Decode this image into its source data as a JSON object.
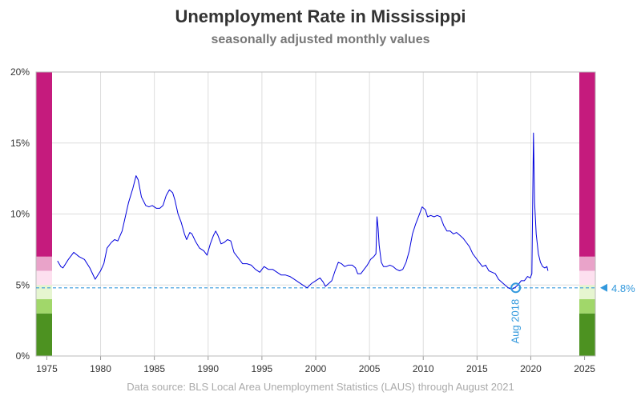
{
  "header": {
    "title": "Unemployment Rate in Mississippi",
    "subtitle": "seasonally adjusted monthly values"
  },
  "footer": {
    "source": "Data source: BLS Local Area Unemployment Statistics (LAUS) through August 2021"
  },
  "colors": {
    "line": "#0000dd",
    "reference": "#3399dd",
    "grid": "#dddddd",
    "band_very_high": "#c51b7d",
    "band_high": "#e9a3c9",
    "band_elevated": "#fde0ef",
    "band_normal": "#e6f5d0",
    "band_low": "#a1d76a",
    "band_very_low": "#4d9221"
  },
  "chart_data": {
    "type": "line",
    "title": "Unemployment Rate in Mississippi",
    "subtitle": "seasonally adjusted monthly values",
    "xlim": [
      1974,
      2026
    ],
    "ylim": [
      0,
      20
    ],
    "x_ticks": [
      1975,
      1980,
      1985,
      1990,
      1995,
      2000,
      2005,
      2010,
      2015,
      2020,
      2025
    ],
    "y_ticks": [
      {
        "value": 0,
        "label": "0%"
      },
      {
        "value": 5,
        "label": "5%"
      },
      {
        "value": 10,
        "label": "10%"
      },
      {
        "value": 15,
        "label": "15%"
      },
      {
        "value": 20,
        "label": "20%"
      }
    ],
    "grid": true,
    "color_bands": [
      {
        "from": 0,
        "to": 3,
        "color": "#4d9221"
      },
      {
        "from": 3,
        "to": 4,
        "color": "#a1d76a"
      },
      {
        "from": 4,
        "to": 5,
        "color": "#e6f5d0"
      },
      {
        "from": 5,
        "to": 6,
        "color": "#fde0ef"
      },
      {
        "from": 6,
        "to": 7,
        "color": "#e9a3c9"
      },
      {
        "from": 7,
        "to": 20,
        "color": "#c51b7d"
      }
    ],
    "reference": {
      "value": 4.8,
      "label": "4.8%",
      "marker_x": 2018.6,
      "marker_label": "Aug 2018"
    },
    "series": [
      {
        "values": [
          [
            1976.0,
            6.7
          ],
          [
            1976.3,
            6.3
          ],
          [
            1976.5,
            6.2
          ],
          [
            1977.0,
            6.8
          ],
          [
            1977.5,
            7.3
          ],
          [
            1978.0,
            7.0
          ],
          [
            1978.5,
            6.8
          ],
          [
            1979.0,
            6.2
          ],
          [
            1979.5,
            5.4
          ],
          [
            1980.0,
            6.0
          ],
          [
            1980.3,
            6.5
          ],
          [
            1980.6,
            7.6
          ],
          [
            1981.0,
            8.0
          ],
          [
            1981.3,
            8.2
          ],
          [
            1981.6,
            8.1
          ],
          [
            1982.0,
            8.8
          ],
          [
            1982.3,
            9.8
          ],
          [
            1982.6,
            10.8
          ],
          [
            1983.0,
            11.8
          ],
          [
            1983.3,
            12.7
          ],
          [
            1983.5,
            12.4
          ],
          [
            1983.8,
            11.2
          ],
          [
            1984.2,
            10.6
          ],
          [
            1984.5,
            10.5
          ],
          [
            1984.8,
            10.6
          ],
          [
            1985.2,
            10.4
          ],
          [
            1985.5,
            10.4
          ],
          [
            1985.8,
            10.6
          ],
          [
            1986.1,
            11.3
          ],
          [
            1986.4,
            11.7
          ],
          [
            1986.7,
            11.5
          ],
          [
            1986.9,
            11.0
          ],
          [
            1987.2,
            10.0
          ],
          [
            1987.5,
            9.4
          ],
          [
            1987.8,
            8.6
          ],
          [
            1988.0,
            8.2
          ],
          [
            1988.3,
            8.7
          ],
          [
            1988.5,
            8.6
          ],
          [
            1988.8,
            8.1
          ],
          [
            1989.2,
            7.6
          ],
          [
            1989.6,
            7.4
          ],
          [
            1989.9,
            7.1
          ],
          [
            1990.2,
            7.9
          ],
          [
            1990.5,
            8.5
          ],
          [
            1990.7,
            8.8
          ],
          [
            1990.9,
            8.5
          ],
          [
            1991.2,
            7.9
          ],
          [
            1991.5,
            8.0
          ],
          [
            1991.8,
            8.2
          ],
          [
            1992.1,
            8.1
          ],
          [
            1992.4,
            7.3
          ],
          [
            1992.8,
            6.9
          ],
          [
            1993.2,
            6.5
          ],
          [
            1993.6,
            6.5
          ],
          [
            1994.0,
            6.4
          ],
          [
            1994.4,
            6.1
          ],
          [
            1994.8,
            5.9
          ],
          [
            1995.2,
            6.3
          ],
          [
            1995.6,
            6.1
          ],
          [
            1996.0,
            6.1
          ],
          [
            1996.4,
            5.9
          ],
          [
            1996.8,
            5.7
          ],
          [
            1997.2,
            5.7
          ],
          [
            1997.6,
            5.6
          ],
          [
            1998.0,
            5.4
          ],
          [
            1998.4,
            5.2
          ],
          [
            1998.8,
            5.0
          ],
          [
            1999.2,
            4.8
          ],
          [
            1999.6,
            5.1
          ],
          [
            2000.0,
            5.3
          ],
          [
            2000.4,
            5.5
          ],
          [
            2000.7,
            5.2
          ],
          [
            2000.9,
            4.9
          ],
          [
            2001.2,
            5.1
          ],
          [
            2001.5,
            5.3
          ],
          [
            2001.8,
            6.0
          ],
          [
            2002.1,
            6.6
          ],
          [
            2002.4,
            6.5
          ],
          [
            2002.7,
            6.3
          ],
          [
            2003.0,
            6.4
          ],
          [
            2003.4,
            6.4
          ],
          [
            2003.7,
            6.2
          ],
          [
            2003.9,
            5.8
          ],
          [
            2004.2,
            5.8
          ],
          [
            2004.5,
            6.1
          ],
          [
            2004.8,
            6.4
          ],
          [
            2005.1,
            6.8
          ],
          [
            2005.4,
            7.0
          ],
          [
            2005.6,
            7.2
          ],
          [
            2005.7,
            9.8
          ],
          [
            2005.8,
            9.0
          ],
          [
            2005.9,
            7.8
          ],
          [
            2006.1,
            6.6
          ],
          [
            2006.3,
            6.3
          ],
          [
            2006.6,
            6.3
          ],
          [
            2006.9,
            6.4
          ],
          [
            2007.2,
            6.3
          ],
          [
            2007.5,
            6.1
          ],
          [
            2007.8,
            6.0
          ],
          [
            2008.1,
            6.1
          ],
          [
            2008.4,
            6.6
          ],
          [
            2008.7,
            7.4
          ],
          [
            2009.0,
            8.6
          ],
          [
            2009.3,
            9.3
          ],
          [
            2009.6,
            9.9
          ],
          [
            2009.9,
            10.5
          ],
          [
            2010.2,
            10.3
          ],
          [
            2010.4,
            9.8
          ],
          [
            2010.7,
            9.9
          ],
          [
            2011.0,
            9.8
          ],
          [
            2011.3,
            9.9
          ],
          [
            2011.6,
            9.8
          ],
          [
            2011.9,
            9.2
          ],
          [
            2012.2,
            8.8
          ],
          [
            2012.5,
            8.8
          ],
          [
            2012.8,
            8.6
          ],
          [
            2013.1,
            8.7
          ],
          [
            2013.4,
            8.5
          ],
          [
            2013.7,
            8.3
          ],
          [
            2014.0,
            8.0
          ],
          [
            2014.3,
            7.7
          ],
          [
            2014.6,
            7.2
          ],
          [
            2014.9,
            6.9
          ],
          [
            2015.2,
            6.6
          ],
          [
            2015.5,
            6.3
          ],
          [
            2015.8,
            6.4
          ],
          [
            2016.1,
            6.0
          ],
          [
            2016.4,
            5.9
          ],
          [
            2016.7,
            5.8
          ],
          [
            2017.0,
            5.4
          ],
          [
            2017.3,
            5.2
          ],
          [
            2017.6,
            5.0
          ],
          [
            2017.9,
            4.8
          ],
          [
            2018.2,
            4.7
          ],
          [
            2018.5,
            4.8
          ],
          [
            2018.8,
            5.0
          ],
          [
            2019.1,
            5.3
          ],
          [
            2019.4,
            5.3
          ],
          [
            2019.7,
            5.6
          ],
          [
            2019.95,
            5.5
          ],
          [
            2020.1,
            5.8
          ],
          [
            2020.25,
            15.7
          ],
          [
            2020.35,
            10.8
          ],
          [
            2020.5,
            8.6
          ],
          [
            2020.7,
            7.2
          ],
          [
            2020.9,
            6.6
          ],
          [
            2021.1,
            6.3
          ],
          [
            2021.3,
            6.2
          ],
          [
            2021.5,
            6.3
          ],
          [
            2021.6,
            6.0
          ]
        ]
      }
    ]
  }
}
